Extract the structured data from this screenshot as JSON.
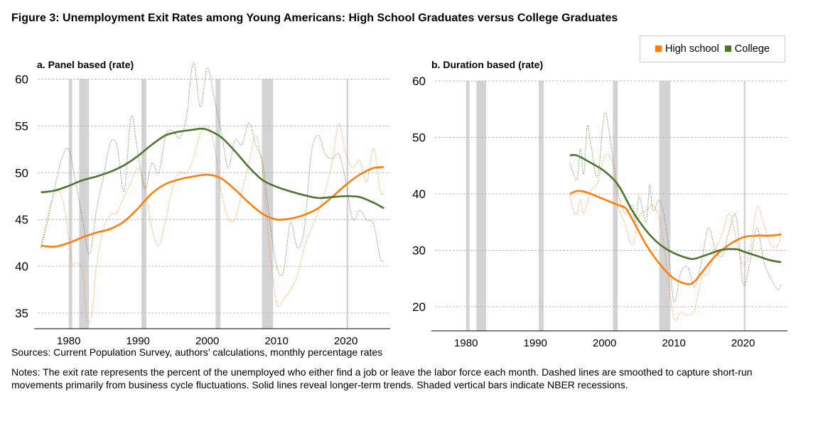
{
  "title": "Figure 3: Unemployment Exit Rates among Young Americans: High School Graduates versus College Graduates",
  "legend": [
    {
      "name": "High school",
      "color": "#ff7f0e"
    },
    {
      "name": "College",
      "color": "#4e7530"
    }
  ],
  "sources": "Sources: Current Population Survey, authors’ calculations, monthly percentage rates",
  "notes": "Notes: The exit rate represents the percent of the unemployed who either find a job or leave the labor force each month. Dashed lines are smoothed to capture short-run movements primarily from business cycle fluctuations. Solid lines reveal longer-term trends. Shaded vertical bars indicate NBER recessions.",
  "chart_data": [
    {
      "type": "line",
      "title": "a. Panel based (rate)",
      "xlim": [
        1975,
        2026.4
      ],
      "ylim": [
        33.5,
        61.5
      ],
      "xticks": [
        1980,
        1990,
        2000,
        2010,
        2020
      ],
      "yticks": [
        35,
        40,
        45,
        50,
        55,
        60
      ],
      "grid": true,
      "recessions": [
        [
          1980.0,
          1980.5
        ],
        [
          1981.5,
          1982.9
        ],
        [
          1990.5,
          1991.2
        ],
        [
          2001.2,
          2001.9
        ],
        [
          2007.9,
          2009.5
        ],
        [
          2020.1,
          2020.3
        ]
      ],
      "series": [
        {
          "name": "High school",
          "style": "dashed",
          "x": [
            1976,
            1977,
            1978,
            1979,
            1980,
            1980.5,
            1981,
            1982,
            1982.5,
            1983,
            1983.5,
            1984,
            1985,
            1986,
            1987,
            1988,
            1989,
            1990,
            1991,
            1992,
            1993,
            1994,
            1995,
            1996,
            1997,
            1998,
            1999,
            2000,
            2001,
            2002,
            2003,
            2004,
            2005,
            2006,
            2007,
            2008,
            2009,
            2010,
            2011,
            2012,
            2013,
            2014,
            2015,
            2016,
            2017,
            2018,
            2019,
            2020,
            2021,
            2022,
            2023,
            2024,
            2025,
            2025.5
          ],
          "y": [
            42,
            45.5,
            47.8,
            47.5,
            43,
            40.2,
            40.4,
            39.5,
            35,
            34,
            36,
            40,
            44,
            45.5,
            45.8,
            47.5,
            49,
            50.5,
            48.5,
            44,
            42.2,
            45,
            48.5,
            50,
            50,
            51.5,
            54.2,
            55,
            53,
            48,
            45.2,
            45,
            48,
            51,
            54,
            50,
            42,
            36,
            36.5,
            37.5,
            39,
            42,
            44,
            45.8,
            48,
            51,
            55.2,
            52,
            50.5,
            51.3,
            49,
            52.6,
            48,
            48
          ]
        },
        {
          "name": "College",
          "style": "dashed",
          "x": [
            1976,
            1977,
            1978,
            1979,
            1980,
            1981,
            1982,
            1983,
            1984,
            1985,
            1986,
            1987,
            1988,
            1989,
            1990,
            1991,
            1992,
            1993,
            1994,
            1995,
            1996,
            1997,
            1998,
            1999,
            2000,
            2001,
            2002,
            2003,
            2004,
            2005,
            2006,
            2007,
            2008,
            2009,
            2010,
            2011,
            2012,
            2013,
            2014,
            2015,
            2016,
            2017,
            2018,
            2019,
            2020,
            2021,
            2022,
            2023,
            2024,
            2025,
            2025.5
          ],
          "y": [
            42,
            45,
            48.5,
            51.5,
            52.5,
            49,
            45,
            41.3,
            46,
            49.5,
            53.2,
            52.8,
            48,
            56,
            52,
            48.3,
            51,
            50,
            54,
            54.5,
            53.7,
            56,
            61.8,
            57,
            61.2,
            58,
            54.5,
            50.5,
            53.5,
            53,
            55.3,
            53,
            51,
            45,
            40,
            39.4,
            44.7,
            42,
            44,
            52,
            54,
            52,
            51.5,
            52,
            49,
            45,
            46,
            45,
            44.5,
            40.8,
            40.7
          ]
        },
        {
          "name": "High school",
          "style": "solid",
          "x": [
            1976,
            1978,
            1980,
            1982,
            1984,
            1986,
            1988,
            1990,
            1992,
            1994,
            1996,
            1998,
            2000,
            2002,
            2004,
            2006,
            2008,
            2010,
            2012,
            2014,
            2016,
            2018,
            2020,
            2022,
            2024,
            2025.5
          ],
          "y": [
            42.2,
            42.1,
            42.5,
            43.1,
            43.6,
            44.0,
            44.8,
            46.2,
            47.8,
            48.8,
            49.3,
            49.6,
            49.8,
            49.4,
            48.2,
            46.8,
            45.6,
            45.0,
            45.1,
            45.5,
            46.2,
            47.4,
            48.7,
            49.8,
            50.5,
            50.6
          ]
        },
        {
          "name": "College",
          "style": "solid",
          "x": [
            1976,
            1978,
            1980,
            1982,
            1984,
            1986,
            1988,
            1990,
            1992,
            1994,
            1996,
            1998,
            1999,
            2000,
            2002,
            2004,
            2006,
            2008,
            2010,
            2012,
            2014,
            2016,
            2018,
            2020,
            2022,
            2024,
            2025.5
          ],
          "y": [
            47.9,
            48.1,
            48.6,
            49.2,
            49.6,
            50.1,
            50.8,
            51.8,
            53.0,
            54.0,
            54.4,
            54.6,
            54.7,
            54.6,
            53.8,
            52.3,
            50.6,
            49.2,
            48.5,
            48.0,
            47.6,
            47.3,
            47.4,
            47.5,
            47.4,
            46.8,
            46.2
          ]
        }
      ]
    },
    {
      "type": "line",
      "title": "b. Duration based (rate)",
      "xlim": [
        1975,
        2026.4
      ],
      "ylim": [
        16,
        60
      ],
      "xticks": [
        1980,
        1990,
        2000,
        2010,
        2020
      ],
      "yticks": [
        20,
        30,
        40,
        50,
        60
      ],
      "grid": true,
      "recessions": [
        [
          1980.0,
          1980.5
        ],
        [
          1981.5,
          1982.9
        ],
        [
          1990.5,
          1991.2
        ],
        [
          2001.2,
          2001.9
        ],
        [
          2007.9,
          2009.5
        ],
        [
          2020.1,
          2020.3
        ]
      ],
      "series": [
        {
          "name": "High school",
          "style": "dashed",
          "x": [
            1995,
            1995.5,
            1996,
            1996.5,
            1997,
            1998,
            1999,
            2000,
            2001,
            2002,
            2003,
            2004,
            2005,
            2006,
            2007,
            2008,
            2009,
            2010,
            2011,
            2012,
            2013,
            2014,
            2015,
            2016,
            2017,
            2018,
            2019,
            2020,
            2021,
            2022,
            2023,
            2024,
            2025,
            2025.5
          ],
          "y": [
            40,
            37,
            36.5,
            39,
            36.5,
            40.5,
            42,
            46.5,
            46,
            38,
            34.5,
            31,
            36,
            37,
            38,
            35,
            27,
            18,
            19,
            18.5,
            19.5,
            25,
            26,
            30,
            33,
            36.5,
            32,
            27.5,
            30,
            37.6,
            34.5,
            31,
            30.8,
            33.5
          ]
        },
        {
          "name": "College",
          "style": "dashed",
          "x": [
            1995,
            1996,
            1996.5,
            1997,
            1997.5,
            1998,
            1999,
            2000,
            2001,
            2002,
            2003,
            2004,
            2004.5,
            2005,
            2006,
            2006.5,
            2007,
            2008,
            2009,
            2010,
            2011,
            2012,
            2013,
            2014,
            2015,
            2016,
            2017,
            2018,
            2019,
            2020,
            2021,
            2022,
            2023,
            2024,
            2025,
            2025.5
          ],
          "y": [
            45.5,
            42.5,
            48,
            43.5,
            52,
            49,
            43,
            54.2,
            48,
            40,
            36.5,
            38,
            35,
            39.5,
            35,
            41.5,
            37,
            38.8,
            33,
            21,
            26,
            27,
            23.5,
            28,
            34,
            30,
            29,
            33.5,
            36,
            24,
            28,
            34,
            28,
            25,
            23,
            24
          ]
        },
        {
          "name": "High school",
          "style": "solid",
          "x": [
            1995,
            1996,
            1997,
            1998,
            2000,
            2002,
            2003,
            2004,
            2006,
            2008,
            2010,
            2012,
            2013,
            2014,
            2016,
            2018,
            2020,
            2022,
            2024,
            2025.5
          ],
          "y": [
            40,
            40.5,
            40.4,
            40,
            39,
            38,
            37.5,
            35.5,
            31,
            27.5,
            25,
            24,
            24.5,
            26,
            29,
            31,
            32.3,
            32.6,
            32.6,
            32.8
          ]
        },
        {
          "name": "College",
          "style": "solid",
          "x": [
            1995,
            1996,
            1998,
            2000,
            2002,
            2004,
            2006,
            2008,
            2010,
            2012,
            2013,
            2015,
            2017,
            2019,
            2020,
            2022,
            2024,
            2025.5
          ],
          "y": [
            46.8,
            46.8,
            45.5,
            44,
            41.5,
            37,
            33.5,
            31,
            29.5,
            28.6,
            28.5,
            29.3,
            30.1,
            30.2,
            29.8,
            29,
            28.2,
            27.9
          ]
        }
      ]
    }
  ]
}
